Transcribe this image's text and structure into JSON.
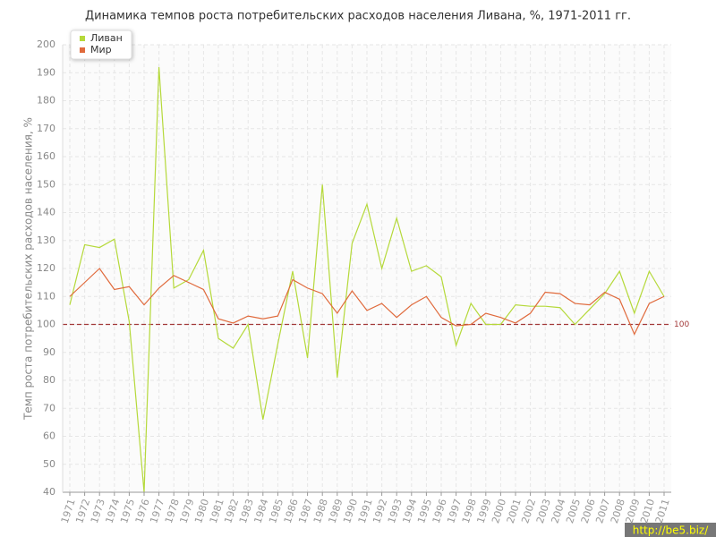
{
  "chart_data": {
    "type": "line",
    "title": "Динамика темпов роста потребительских расходов населения Ливана, %, 1971-2011 гг.",
    "y_label": "Темп роста потребительских расходов населения, %",
    "categories": [
      "1971",
      "1972",
      "1973",
      "1974",
      "1975",
      "1976",
      "1977",
      "1978",
      "1979",
      "1980",
      "1981",
      "1982",
      "1983",
      "1984",
      "1985",
      "1986",
      "1987",
      "1988",
      "1989",
      "1990",
      "1991",
      "1992",
      "1993",
      "1994",
      "1995",
      "1996",
      "1997",
      "1998",
      "1999",
      "2000",
      "2001",
      "2002",
      "2003",
      "2004",
      "2005",
      "2006",
      "2007",
      "2008",
      "2009",
      "2010",
      "2011"
    ],
    "series": [
      {
        "name": "Ливан",
        "color": "#b5d93a",
        "values": [
          107,
          128.5,
          127.5,
          130.5,
          101,
          40,
          192,
          113,
          116,
          126.5,
          95,
          91.5,
          100,
          66,
          93,
          119,
          88,
          150,
          81,
          129,
          143,
          120,
          138,
          119,
          121,
          117,
          92.5,
          107.5,
          100,
          100,
          107,
          106.5,
          106.5,
          106,
          100,
          105.5,
          111,
          119,
          104,
          119,
          110
        ]
      },
      {
        "name": "Мир",
        "color": "#e06a3c",
        "values": [
          110,
          115,
          120,
          112.5,
          113.5,
          107,
          113,
          117.5,
          115,
          112.5,
          102,
          100.5,
          103,
          102,
          103,
          116,
          113,
          111,
          104,
          112,
          105,
          107.5,
          102.5,
          107,
          110,
          102.5,
          99.5,
          100,
          104,
          102.5,
          100.5,
          104,
          111.5,
          111,
          107.5,
          107,
          111.5,
          109,
          96.5,
          107.5,
          110
        ]
      }
    ],
    "ylim": [
      40,
      200
    ],
    "yticks": [
      40,
      50,
      60,
      70,
      80,
      90,
      100,
      110,
      120,
      130,
      140,
      150,
      160,
      170,
      180,
      190,
      200
    ],
    "grid": true,
    "reference_line": 100,
    "reference_color": "#a33a3a",
    "legend": "top-left",
    "watermark": "http://be5.biz/"
  }
}
